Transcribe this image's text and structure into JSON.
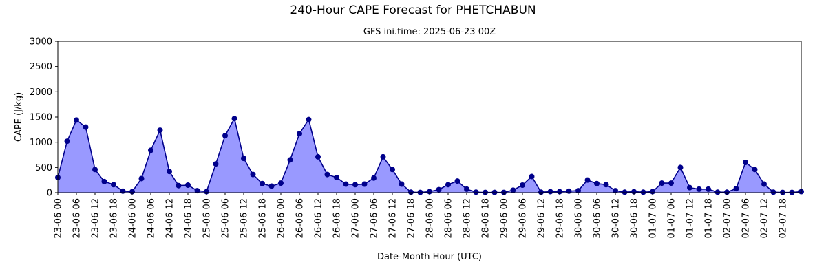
{
  "colors": {
    "fill": "#9999ff",
    "line": "#00008b",
    "marker": "#00008b",
    "axis": "#000000"
  },
  "chart_data": {
    "type": "area",
    "title": "240-Hour CAPE Forecast for PHETCHABUN",
    "subtitle": "GFS ini.time: 2025-06-23 00Z",
    "xlabel": "Date-Month Hour (UTC)",
    "ylabel": "CAPE (J/kg)",
    "ylim": [
      0,
      3000
    ],
    "yticks": [
      0,
      500,
      1000,
      1500,
      2000,
      2500,
      3000
    ],
    "grid": false,
    "legend": "none",
    "x": [
      "23-06 00",
      "23-06 03",
      "23-06 06",
      "23-06 09",
      "23-06 12",
      "23-06 15",
      "23-06 18",
      "23-06 21",
      "24-06 00",
      "24-06 03",
      "24-06 06",
      "24-06 09",
      "24-06 12",
      "24-06 15",
      "24-06 18",
      "24-06 21",
      "25-06 00",
      "25-06 03",
      "25-06 06",
      "25-06 09",
      "25-06 12",
      "25-06 15",
      "25-06 18",
      "25-06 21",
      "26-06 00",
      "26-06 03",
      "26-06 06",
      "26-06 09",
      "26-06 12",
      "26-06 15",
      "26-06 18",
      "26-06 21",
      "27-06 00",
      "27-06 03",
      "27-06 06",
      "27-06 09",
      "27-06 12",
      "27-06 15",
      "27-06 18",
      "27-06 21",
      "28-06 00",
      "28-06 03",
      "28-06 06",
      "28-06 09",
      "28-06 12",
      "28-06 15",
      "28-06 18",
      "28-06 21",
      "29-06 00",
      "29-06 03",
      "29-06 06",
      "29-06 09",
      "29-06 12",
      "29-06 15",
      "29-06 18",
      "29-06 21",
      "30-06 00",
      "30-06 03",
      "30-06 06",
      "30-06 09",
      "30-06 12",
      "30-06 15",
      "30-06 18",
      "30-06 21",
      "01-07 00",
      "01-07 03",
      "01-07 06",
      "01-07 09",
      "01-07 12",
      "01-07 15",
      "01-07 18",
      "01-07 21",
      "02-07 00",
      "02-07 03",
      "02-07 06",
      "02-07 09",
      "02-07 12",
      "02-07 15",
      "02-07 18",
      "02-07 21",
      "03-07 00"
    ],
    "xtick_labels": [
      "23-06 00",
      "23-06 06",
      "23-06 12",
      "23-06 18",
      "24-06 00",
      "24-06 06",
      "24-06 12",
      "24-06 18",
      "25-06 00",
      "25-06 06",
      "25-06 12",
      "25-06 18",
      "26-06 00",
      "26-06 06",
      "26-06 12",
      "26-06 18",
      "27-06 00",
      "27-06 06",
      "27-06 12",
      "27-06 18",
      "28-06 00",
      "28-06 06",
      "28-06 12",
      "28-06 18",
      "29-06 00",
      "29-06 06",
      "29-06 12",
      "29-06 18",
      "30-06 00",
      "30-06 06",
      "30-06 12",
      "30-06 18",
      "01-07 00",
      "01-07 06",
      "01-07 12",
      "01-07 18",
      "02-07 00",
      "02-07 06",
      "02-07 12",
      "02-07 18"
    ],
    "series": [
      {
        "values": [
          300,
          1020,
          1440,
          1300,
          460,
          220,
          160,
          30,
          20,
          280,
          840,
          1240,
          420,
          140,
          150,
          40,
          20,
          570,
          1130,
          1470,
          680,
          360,
          180,
          130,
          190,
          650,
          1170,
          1450,
          710,
          360,
          300,
          170,
          160,
          170,
          290,
          710,
          460,
          170,
          10,
          5,
          20,
          60,
          160,
          230,
          70,
          10,
          5,
          5,
          5,
          50,
          150,
          320,
          10,
          20,
          20,
          30,
          40,
          250,
          180,
          160,
          40,
          10,
          20,
          10,
          20,
          190,
          190,
          500,
          100,
          70,
          70,
          10,
          10,
          80,
          600,
          460,
          170,
          10,
          5,
          5,
          20
        ]
      }
    ]
  }
}
